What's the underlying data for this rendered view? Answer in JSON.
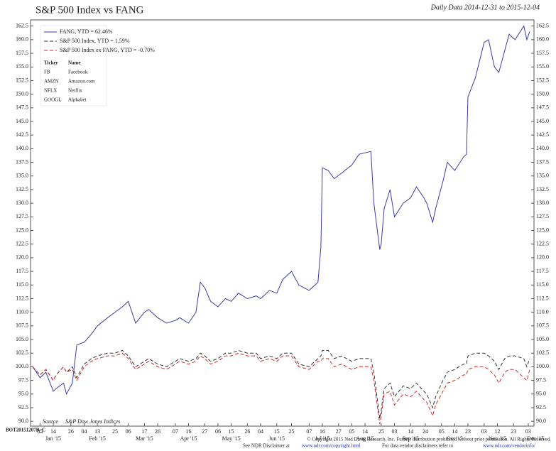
{
  "chart_data": {
    "type": "line",
    "title": "S&P 500 Index vs FANG",
    "subtitle": "Daily Data 2014-12-31 to 2015-12-04",
    "source_label": "Source",
    "source": "S&P Dow Jones Indices",
    "legend_table": {
      "header": [
        "Ticker",
        "Name"
      ],
      "rows": [
        [
          "FB",
          "Facebook"
        ],
        [
          "AMZN",
          "Amazon.com"
        ],
        [
          "NFLX",
          "Netflix"
        ],
        [
          "GOOGL",
          "Alphabet"
        ]
      ]
    },
    "footer": {
      "code": "BOT20151207B_C",
      "copyright": "© Copyright 2015 Ned Davis Research, Inc. Further distribution prohibited without prior permission. All Rights Reserved.",
      "disclaimer": [
        "See NDR Disclaimer at",
        "www.ndr.com/copyright.html",
        "For data vendor disclaimers refer to",
        "www.ndr.com/vendorinfo/"
      ]
    },
    "xlim": [
      "2014-12-31",
      "2015-12-04"
    ],
    "xticks": [
      {
        "value": "2015-01-05",
        "label": "05"
      },
      {
        "value": "2015-01-14",
        "label": "14"
      },
      {
        "value": "2015-01-26",
        "label": "26"
      },
      {
        "value": "2015-02-04",
        "label": "04"
      },
      {
        "value": "2015-02-13",
        "label": "13"
      },
      {
        "value": "2015-02-25",
        "label": "25"
      },
      {
        "value": "2015-03-06",
        "label": "06"
      },
      {
        "value": "2015-03-17",
        "label": "17"
      },
      {
        "value": "2015-03-26",
        "label": "26"
      },
      {
        "value": "2015-04-07",
        "label": "07"
      },
      {
        "value": "2015-04-16",
        "label": "16"
      },
      {
        "value": "2015-04-27",
        "label": "27"
      },
      {
        "value": "2015-05-06",
        "label": "06"
      },
      {
        "value": "2015-05-15",
        "label": "15"
      },
      {
        "value": "2015-05-26",
        "label": "26"
      },
      {
        "value": "2015-06-04",
        "label": "04"
      },
      {
        "value": "2015-06-15",
        "label": "15"
      },
      {
        "value": "2015-06-25",
        "label": "25"
      },
      {
        "value": "2015-07-07",
        "label": "07"
      },
      {
        "value": "2015-07-16",
        "label": "16"
      },
      {
        "value": "2015-07-27",
        "label": "27"
      },
      {
        "value": "2015-08-05",
        "label": "05"
      },
      {
        "value": "2015-08-14",
        "label": "14"
      },
      {
        "value": "2015-08-25",
        "label": "25"
      },
      {
        "value": "2015-09-03",
        "label": "03"
      },
      {
        "value": "2015-09-14",
        "label": "14"
      },
      {
        "value": "2015-09-24",
        "label": "24"
      },
      {
        "value": "2015-10-05",
        "label": "05"
      },
      {
        "value": "2015-10-14",
        "label": "14"
      },
      {
        "value": "2015-10-23",
        "label": "23"
      },
      {
        "value": "2015-11-03",
        "label": "03"
      },
      {
        "value": "2015-11-12",
        "label": "12"
      },
      {
        "value": "2015-11-23",
        "label": "23"
      },
      {
        "value": "2015-12-03",
        "label": "03"
      }
    ],
    "month_ticks": [
      {
        "value": "2015-01-14",
        "label": "Jan '15"
      },
      {
        "value": "2015-02-13",
        "label": "Feb '15"
      },
      {
        "value": "2015-03-17",
        "label": "Mar '15"
      },
      {
        "value": "2015-04-16",
        "label": "Apr '15"
      },
      {
        "value": "2015-05-15",
        "label": "May '15"
      },
      {
        "value": "2015-06-15",
        "label": "Jun '15"
      },
      {
        "value": "2015-07-16",
        "label": "Jul '15"
      },
      {
        "value": "2015-08-14",
        "label": "Aug '15"
      },
      {
        "value": "2015-09-14",
        "label": "Sep '15"
      },
      {
        "value": "2015-10-14",
        "label": "Oct '15"
      },
      {
        "value": "2015-11-12",
        "label": "Nov '15"
      },
      {
        "value": "2015-12-08",
        "label": "Dec '15"
      }
    ],
    "ylim": [
      89.5,
      163.5
    ],
    "yticks": [
      {
        "value": 90,
        "label": "90.0"
      },
      92.5,
      {
        "value": 95,
        "label": "95.0"
      },
      97.5,
      {
        "value": 100,
        "label": "100.0"
      },
      102.5,
      {
        "value": 105,
        "label": "105.0"
      },
      107.5,
      {
        "value": 110,
        "label": "110.0"
      },
      112.5,
      {
        "value": 115,
        "label": "115.0"
      },
      117.5,
      {
        "value": 120,
        "label": "120.0"
      },
      122.5,
      {
        "value": 125,
        "label": "125.0"
      },
      127.5,
      {
        "value": 130,
        "label": "130.0"
      },
      132.5,
      {
        "value": 135,
        "label": "135.0"
      },
      137.5,
      {
        "value": 140,
        "label": "140.0"
      },
      142.5,
      {
        "value": 145,
        "label": "145.0"
      },
      147.5,
      {
        "value": 150,
        "label": "150.0"
      },
      152.5,
      {
        "value": 155,
        "label": "155.0"
      },
      157.5,
      {
        "value": 160,
        "label": "160.0"
      },
      162.5
    ],
    "grid": false,
    "legend": "upper left",
    "x": [
      "2014-12-31",
      "2015-01-05",
      "2015-01-09",
      "2015-01-14",
      "2015-01-16",
      "2015-01-21",
      "2015-01-23",
      "2015-01-27",
      "2015-01-30",
      "2015-02-04",
      "2015-02-09",
      "2015-02-13",
      "2015-02-20",
      "2015-02-25",
      "2015-03-02",
      "2015-03-06",
      "2015-03-11",
      "2015-03-17",
      "2015-03-20",
      "2015-03-26",
      "2015-04-01",
      "2015-04-07",
      "2015-04-10",
      "2015-04-16",
      "2015-04-21",
      "2015-04-24",
      "2015-04-27",
      "2015-05-01",
      "2015-05-06",
      "2015-05-11",
      "2015-05-15",
      "2015-05-20",
      "2015-05-26",
      "2015-06-01",
      "2015-06-04",
      "2015-06-10",
      "2015-06-15",
      "2015-06-19",
      "2015-06-25",
      "2015-06-30",
      "2015-07-07",
      "2015-07-13",
      "2015-07-15",
      "2015-07-16",
      "2015-07-20",
      "2015-07-24",
      "2015-07-29",
      "2015-08-05",
      "2015-08-10",
      "2015-08-18",
      "2015-08-20",
      "2015-08-24",
      "2015-08-25",
      "2015-08-27",
      "2015-08-31",
      "2015-09-03",
      "2015-09-09",
      "2015-09-14",
      "2015-09-18",
      "2015-09-23",
      "2015-09-25",
      "2015-09-29",
      "2015-10-01",
      "2015-10-06",
      "2015-10-09",
      "2015-10-14",
      "2015-10-20",
      "2015-10-22",
      "2015-10-23",
      "2015-10-28",
      "2015-11-03",
      "2015-11-06",
      "2015-11-10",
      "2015-11-13",
      "2015-11-17",
      "2015-11-20",
      "2015-11-24",
      "2015-11-30",
      "2015-12-02",
      "2015-12-04"
    ],
    "series": [
      {
        "name": "FANG, YTD = 62.46%",
        "color": "#3b3ba6",
        "dashed": false,
        "values": [
          100,
          98,
          99,
          95.5,
          96,
          97,
          95,
          97,
          104,
          104.5,
          106,
          107.5,
          109,
          110,
          111,
          112,
          108,
          110,
          110.5,
          109,
          108,
          108.5,
          109,
          108,
          110,
          115.5,
          114.5,
          112,
          111,
          112.5,
          112,
          113.5,
          112.5,
          113,
          112.5,
          114,
          113.5,
          116,
          117.5,
          115,
          114,
          115.5,
          122,
          136.5,
          136,
          134.5,
          135.5,
          137,
          139,
          139.5,
          130,
          121.5,
          122.5,
          129,
          132.5,
          127.5,
          130,
          131,
          133,
          131,
          130,
          126.5,
          129,
          134,
          137.5,
          136,
          138.5,
          139,
          149.5,
          153,
          159.5,
          160,
          155,
          154,
          158,
          161,
          160,
          162.5,
          160,
          161.5
        ]
      },
      {
        "name": "S&P 500 Index, YTD = 1.59%",
        "color": "#333333",
        "dashed": true,
        "values": [
          100,
          98.5,
          99.5,
          97.5,
          98.5,
          100,
          99,
          100,
          98,
          100.5,
          101.5,
          102,
          102.5,
          102.5,
          103,
          102,
          100,
          101,
          101.5,
          100.5,
          100,
          101,
          101.5,
          101,
          101.5,
          102.5,
          102,
          101,
          101.5,
          102.5,
          102.5,
          103,
          102.5,
          102.5,
          101.5,
          102,
          101.5,
          102.5,
          102.5,
          100.5,
          100,
          101.5,
          102,
          103,
          103,
          101.5,
          102,
          101,
          101.5,
          101.5,
          99,
          90.5,
          92,
          96,
          97,
          94.5,
          96.5,
          96,
          97,
          95.5,
          95,
          92.5,
          94.5,
          97.5,
          99,
          99.5,
          100.5,
          100.5,
          102,
          102.5,
          102.5,
          102,
          101,
          99.5,
          101.5,
          102,
          102,
          101.5,
          100,
          101.5
        ]
      },
      {
        "name": "S&P 500 Index ex FANG, YTD = -0.70%",
        "color": "#c8302c",
        "dashed": true,
        "values": [
          100,
          98.5,
          99.5,
          97.5,
          98.5,
          100,
          99,
          99.5,
          97.5,
          100,
          101,
          101.5,
          102,
          102,
          102.5,
          101.5,
          99.5,
          100.5,
          101,
          100,
          99.5,
          100.5,
          101,
          100.5,
          101,
          102,
          101.5,
          100.5,
          101,
          102,
          102,
          102.5,
          102,
          102,
          101,
          101.5,
          101,
          102,
          102,
          100,
          99.5,
          101,
          101,
          101.5,
          101.5,
          100,
          100.5,
          99.5,
          100,
          100,
          97.5,
          89.5,
          91,
          95,
          95.5,
          93,
          95,
          94.5,
          95.5,
          94,
          93.5,
          91,
          93,
          95.5,
          97,
          97.5,
          98.5,
          98.5,
          99.5,
          100,
          100,
          99.5,
          98.5,
          97,
          99,
          99.5,
          99.5,
          98,
          97.5,
          99.5
        ]
      }
    ]
  }
}
